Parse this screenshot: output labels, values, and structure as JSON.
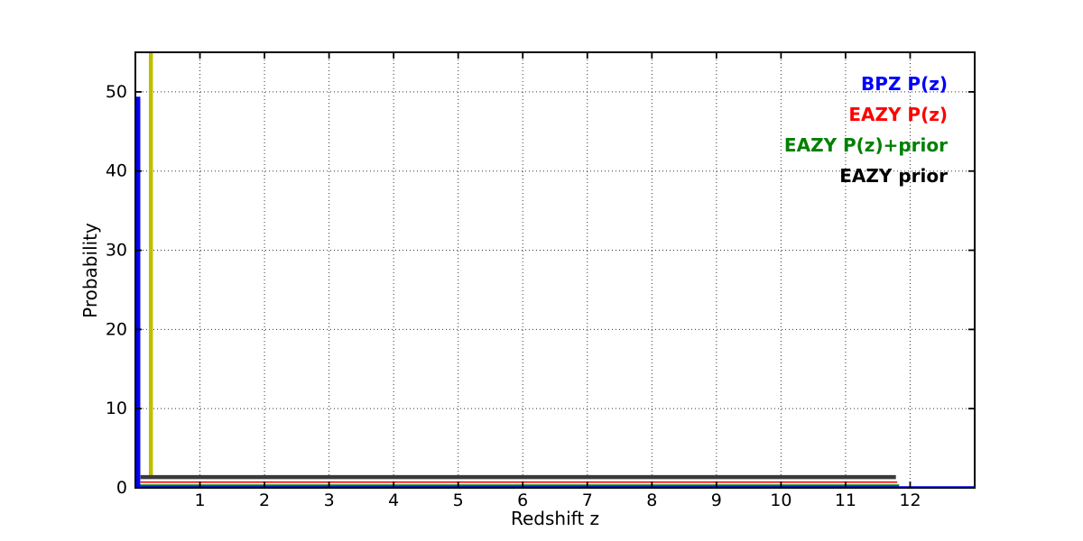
{
  "chart_data": {
    "type": "line",
    "title": "",
    "xlabel": "Redshift z",
    "ylabel": "Probability",
    "xlim": [
      0,
      13
    ],
    "ylim": [
      0,
      55
    ],
    "xticks": [
      1,
      2,
      3,
      4,
      5,
      6,
      7,
      8,
      9,
      10,
      11,
      12
    ],
    "xtick_labels": [
      "1",
      "2",
      "3",
      "4",
      "5",
      "6",
      "7",
      "8",
      "9",
      "10",
      "11",
      "12"
    ],
    "yticks": [
      0,
      10,
      20,
      30,
      40,
      50
    ],
    "ytick_labels": [
      "0",
      "10",
      "20",
      "30",
      "40",
      "50"
    ],
    "grid": {
      "on": true,
      "style": "dotted",
      "color": "#333333"
    },
    "legend": {
      "position": "upper right",
      "items": [
        {
          "label": "BPZ P(z)",
          "color": "#0000ff"
        },
        {
          "label": "EAZY P(z)",
          "color": "#ff0000"
        },
        {
          "label": "EAZY P(z)+prior",
          "color": "#008000"
        },
        {
          "label": "EAZY prior",
          "color": "#000000"
        }
      ]
    },
    "series": [
      {
        "name": "redshift-marker",
        "color": "#bfbf00",
        "segments": [
          {
            "linewidth": 4.5,
            "points": [
              [
                0.24,
                1.2
              ],
              [
                0.24,
                55
              ]
            ]
          }
        ]
      },
      {
        "name": "EAZY prior",
        "color": "#3a3a3a",
        "segments": [
          {
            "linewidth": 4.5,
            "points": [
              [
                0.08,
                1.35
              ],
              [
                11.78,
                1.35
              ]
            ]
          }
        ]
      },
      {
        "name": "EAZY P(z)",
        "color": "#ff0000",
        "segments": [
          {
            "linewidth": 1.6,
            "points": [
              [
                0.08,
                0.72
              ],
              [
                11.8,
                0.72
              ]
            ]
          }
        ]
      },
      {
        "name": "EAZY P(z)+prior",
        "color": "#008000",
        "segments": [
          {
            "linewidth": 2.6,
            "points": [
              [
                0.02,
                0.27
              ],
              [
                11.83,
                0.27
              ]
            ]
          }
        ]
      },
      {
        "name": "BPZ P(z)",
        "color": "#0000ff",
        "segments": [
          {
            "linewidth": 4.5,
            "points": [
              [
                0.045,
                0.1
              ],
              [
                0.045,
                49.4
              ]
            ]
          },
          {
            "linewidth": 2.2,
            "points": [
              [
                0.0,
                0.08
              ],
              [
                13.0,
                0.08
              ]
            ]
          }
        ]
      }
    ]
  }
}
